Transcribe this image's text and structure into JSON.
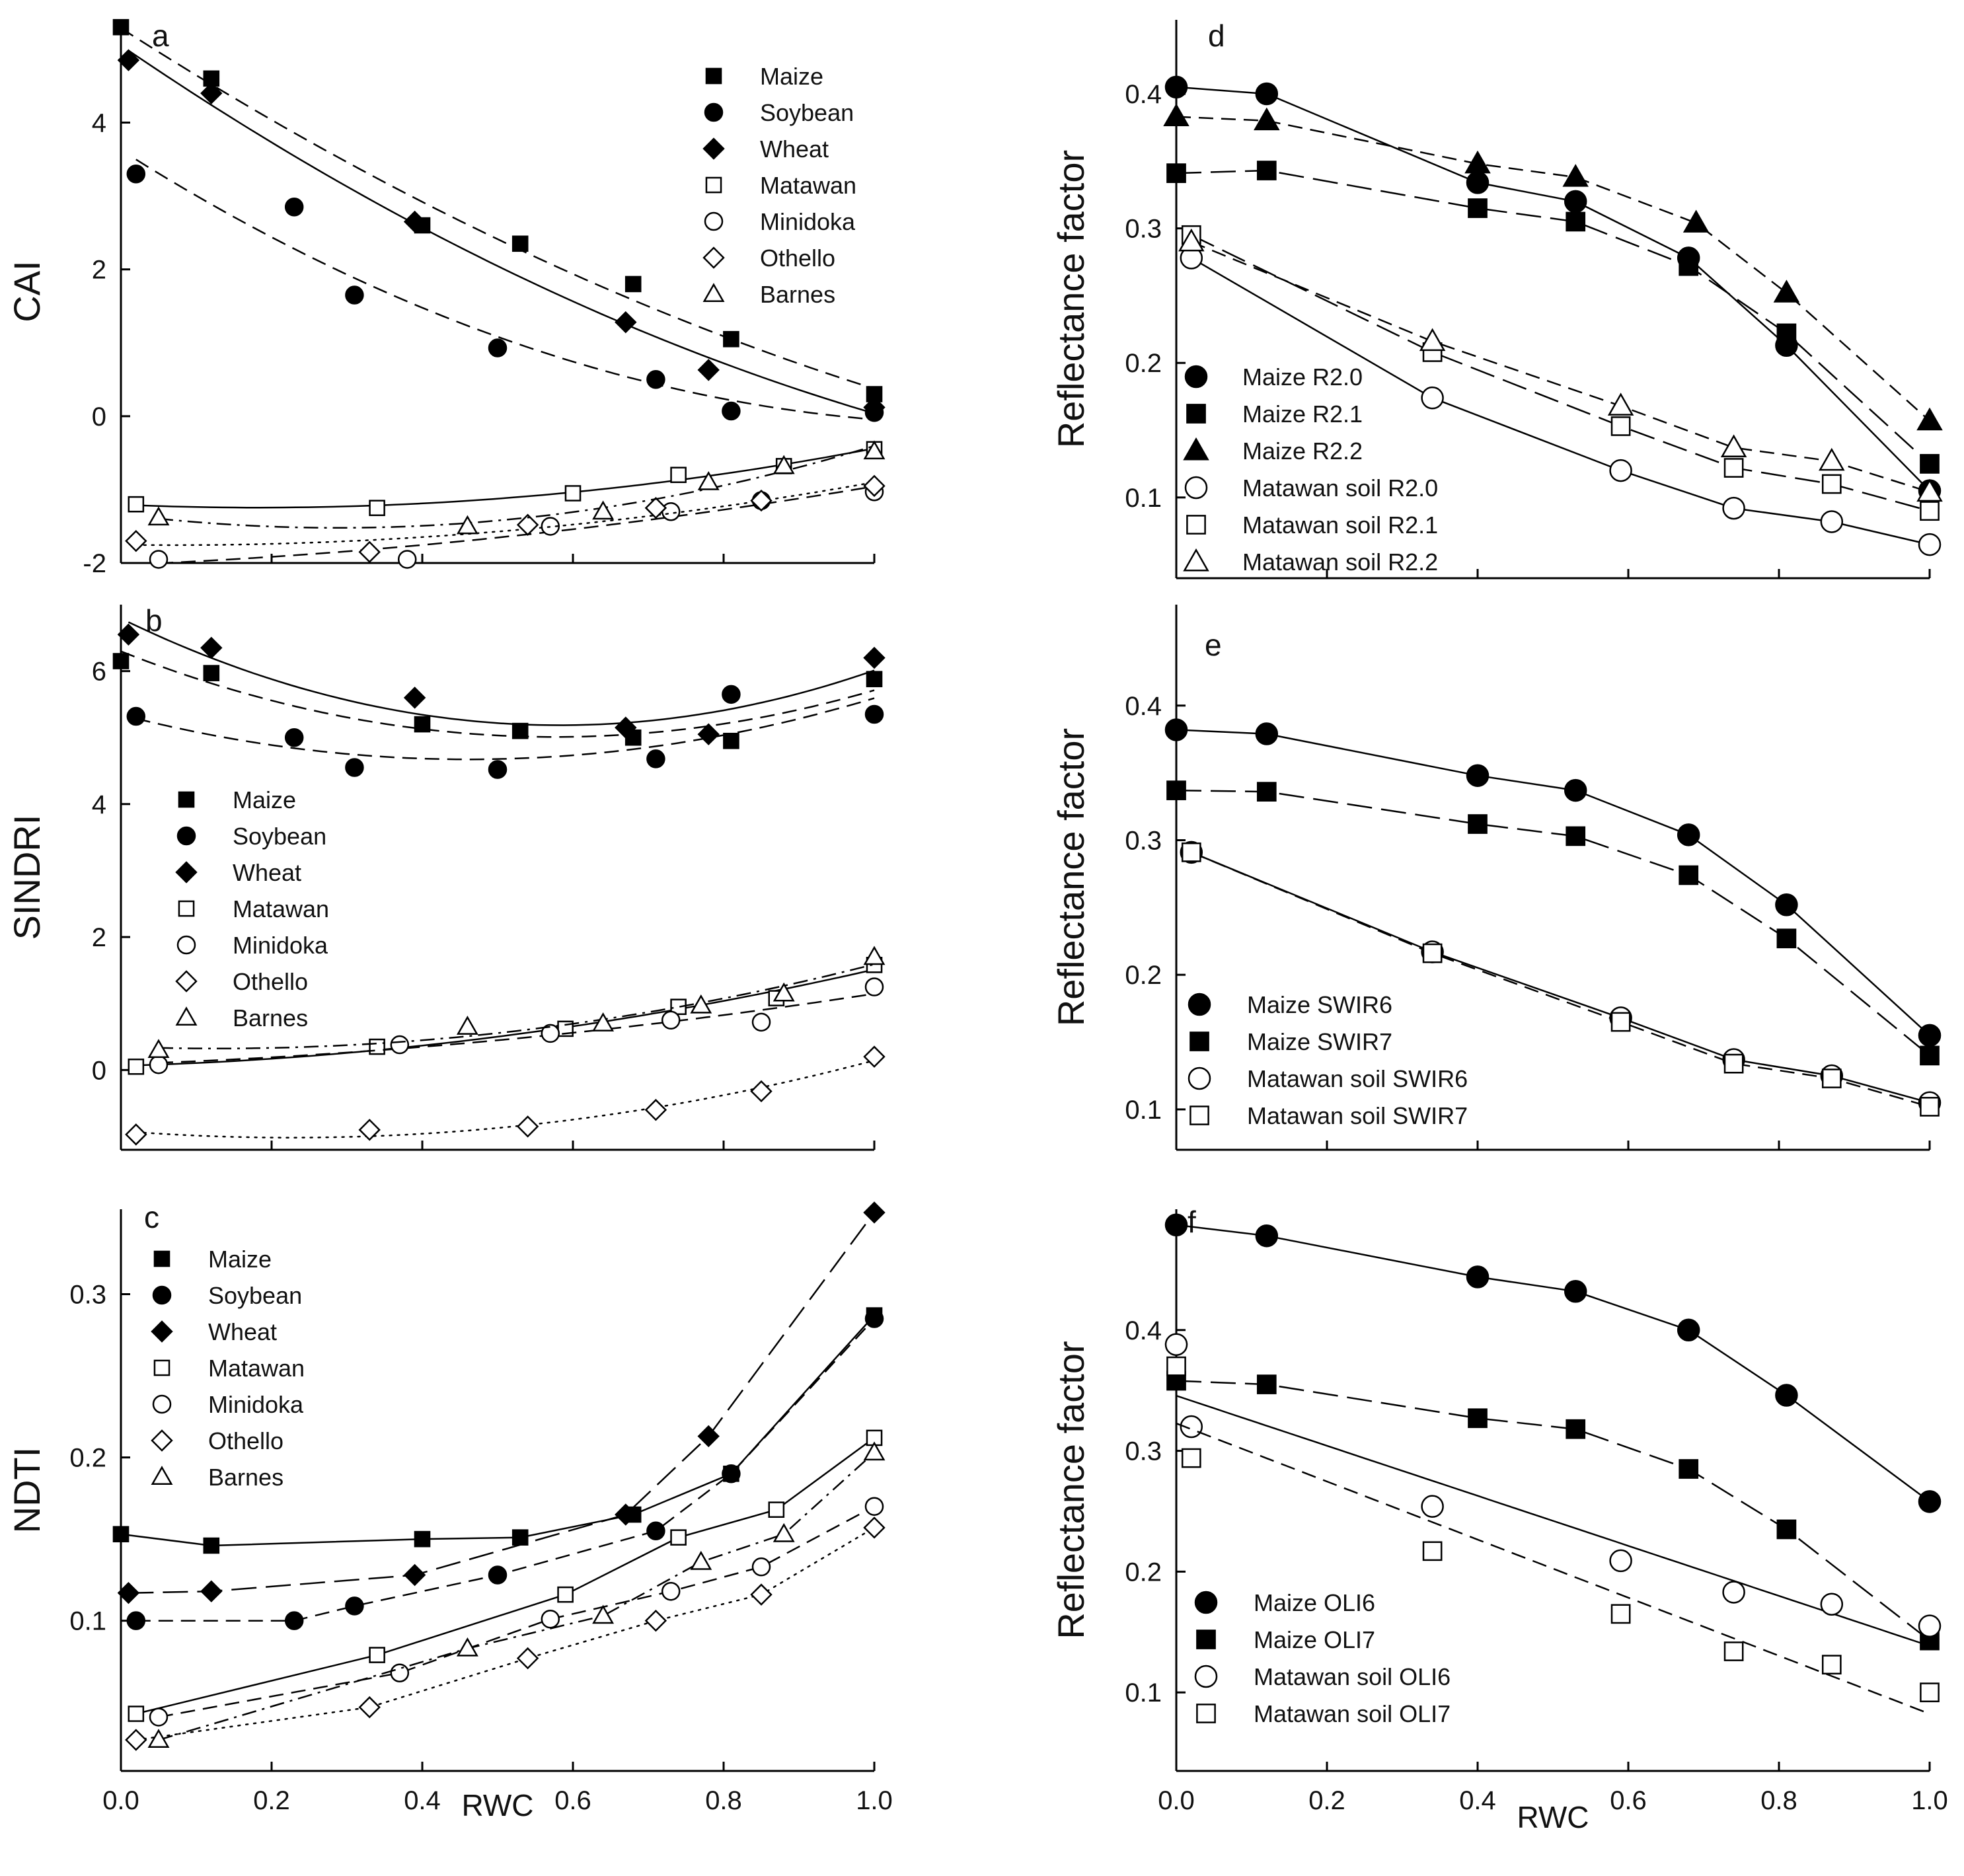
{
  "figure": {
    "x_axis_label": "RWC"
  },
  "chart_data": [
    {
      "id": "a",
      "type": "scatter",
      "panel_label": "a",
      "ylabel": "CAI",
      "xlim": [
        0,
        1
      ],
      "ylim": [
        -2,
        5.4
      ],
      "xticks": [
        0,
        0.2,
        0.4,
        0.6,
        0.8,
        1.0
      ],
      "xtick_labels": [
        "0.0",
        "0.2",
        "0.4",
        "0.6",
        "0.8",
        "1.0"
      ],
      "yticks": [
        -2,
        0,
        2,
        4
      ],
      "ytick_labels": [
        "-2",
        "0",
        "2",
        "4"
      ],
      "show_xtick_labels": false,
      "legend_position": "top-right",
      "series": [
        {
          "name": "Maize",
          "marker": "square",
          "filled": true,
          "line": "dash",
          "fit": "quad",
          "x": [
            0,
            0.12,
            0.4,
            0.53,
            0.68,
            0.81,
            1.0
          ],
          "y": [
            5.3,
            4.6,
            2.6,
            2.35,
            1.8,
            1.05,
            0.3
          ]
        },
        {
          "name": "Soybean",
          "marker": "circle",
          "filled": true,
          "line": "dash",
          "fit": "quad",
          "x": [
            0.02,
            0.23,
            0.31,
            0.5,
            0.71,
            0.81,
            1.0
          ],
          "y": [
            3.3,
            2.85,
            1.65,
            0.93,
            0.5,
            0.07,
            0.05
          ]
        },
        {
          "name": "Wheat",
          "marker": "diamond",
          "filled": true,
          "line": "solid",
          "fit": "quad",
          "x": [
            0.01,
            0.12,
            0.39,
            0.67,
            0.78,
            1.0
          ],
          "y": [
            4.85,
            4.4,
            2.65,
            1.28,
            0.63,
            0.12
          ]
        },
        {
          "name": "Matawan",
          "marker": "square",
          "filled": false,
          "line": "solid",
          "fit": "quad",
          "x": [
            0.02,
            0.34,
            0.6,
            0.74,
            0.88,
            1.0
          ],
          "y": [
            -1.2,
            -1.25,
            -1.05,
            -0.8,
            -0.68,
            -0.45
          ]
        },
        {
          "name": "Minidoka",
          "marker": "circle",
          "filled": false,
          "line": "dash",
          "fit": "quad",
          "x": [
            0.05,
            0.38,
            0.57,
            0.73,
            0.85,
            1.0
          ],
          "y": [
            -1.95,
            -1.95,
            -1.5,
            -1.3,
            -1.15,
            -1.03
          ]
        },
        {
          "name": "Othello",
          "marker": "diamond",
          "filled": false,
          "line": "dot",
          "fit": "quad",
          "x": [
            0.02,
            0.33,
            0.54,
            0.71,
            0.85,
            1.0
          ],
          "y": [
            -1.7,
            -1.85,
            -1.48,
            -1.25,
            -1.15,
            -0.95
          ]
        },
        {
          "name": "Barnes",
          "marker": "triangle",
          "filled": false,
          "line": "dashdot",
          "fit": "quad",
          "x": [
            0.05,
            0.46,
            0.64,
            0.78,
            0.88,
            1.0
          ],
          "y": [
            -1.38,
            -1.5,
            -1.3,
            -0.9,
            -0.68,
            -0.48
          ]
        }
      ]
    },
    {
      "id": "b",
      "type": "scatter",
      "panel_label": "b",
      "ylabel": "SINDRI",
      "xlim": [
        0,
        1
      ],
      "ylim": [
        -1.2,
        7.0
      ],
      "xticks": [
        0,
        0.2,
        0.4,
        0.6,
        0.8,
        1.0
      ],
      "xtick_labels": [
        "0.0",
        "0.2",
        "0.4",
        "0.6",
        "0.8",
        "1.0"
      ],
      "yticks": [
        0,
        2,
        4,
        6
      ],
      "ytick_labels": [
        "0",
        "2",
        "4",
        "6"
      ],
      "show_xtick_labels": false,
      "legend_position": "left-middle",
      "series": [
        {
          "name": "Maize",
          "marker": "square",
          "filled": true,
          "line": "dash",
          "fit": "quad",
          "x": [
            0,
            0.12,
            0.4,
            0.53,
            0.68,
            0.81,
            1.0
          ],
          "y": [
            6.15,
            5.97,
            5.2,
            5.1,
            5.0,
            4.95,
            5.88
          ]
        },
        {
          "name": "Soybean",
          "marker": "circle",
          "filled": true,
          "line": "dash",
          "fit": "quad",
          "x": [
            0.02,
            0.23,
            0.31,
            0.5,
            0.71,
            0.81,
            1.0
          ],
          "y": [
            5.32,
            5.0,
            4.55,
            4.52,
            4.68,
            5.65,
            5.35
          ]
        },
        {
          "name": "Wheat",
          "marker": "diamond",
          "filled": true,
          "line": "solid",
          "fit": "quad",
          "x": [
            0.01,
            0.12,
            0.39,
            0.67,
            0.78,
            1.0
          ],
          "y": [
            6.55,
            6.35,
            5.6,
            5.15,
            5.05,
            6.2
          ]
        },
        {
          "name": "Matawan",
          "marker": "square",
          "filled": false,
          "line": "solid",
          "fit": "quad",
          "x": [
            0.02,
            0.34,
            0.59,
            0.74,
            0.87,
            1.0
          ],
          "y": [
            0.05,
            0.35,
            0.62,
            0.95,
            1.08,
            1.58
          ]
        },
        {
          "name": "Minidoka",
          "marker": "circle",
          "filled": false,
          "line": "dash",
          "fit": "quad",
          "x": [
            0.05,
            0.37,
            0.57,
            0.73,
            0.85,
            1.0
          ],
          "y": [
            0.08,
            0.38,
            0.55,
            0.75,
            0.72,
            1.25
          ]
        },
        {
          "name": "Othello",
          "marker": "diamond",
          "filled": false,
          "line": "dot",
          "fit": "quad",
          "x": [
            0.02,
            0.33,
            0.54,
            0.71,
            0.85,
            1.0
          ],
          "y": [
            -0.97,
            -0.9,
            -0.85,
            -0.6,
            -0.32,
            0.2
          ]
        },
        {
          "name": "Barnes",
          "marker": "triangle",
          "filled": false,
          "line": "dashdot",
          "fit": "quad",
          "x": [
            0.05,
            0.46,
            0.64,
            0.77,
            0.88,
            1.0
          ],
          "y": [
            0.3,
            0.65,
            0.7,
            0.97,
            1.15,
            1.7
          ]
        }
      ]
    },
    {
      "id": "c",
      "type": "scatter",
      "panel_label": "c",
      "ylabel": "NDTI",
      "xlim": [
        0,
        1
      ],
      "ylim": [
        0.008,
        0.352
      ],
      "xticks": [
        0,
        0.2,
        0.4,
        0.6,
        0.8,
        1.0
      ],
      "xtick_labels": [
        "0.0",
        "0.2",
        "0.4",
        "0.6",
        "0.8",
        "1.0"
      ],
      "yticks": [
        0.1,
        0.2,
        0.3
      ],
      "ytick_labels": [
        "0.1",
        "0.2",
        "0.3"
      ],
      "show_xtick_labels": true,
      "legend_position": "top-left",
      "series": [
        {
          "name": "Maize",
          "marker": "square",
          "filled": true,
          "line": "solid",
          "fit": "connect",
          "x": [
            0,
            0.12,
            0.4,
            0.53,
            0.68,
            0.81,
            1.0
          ],
          "y": [
            0.153,
            0.146,
            0.15,
            0.151,
            0.165,
            0.19,
            0.287
          ]
        },
        {
          "name": "Soybean",
          "marker": "circle",
          "filled": true,
          "line": "dash",
          "fit": "connect",
          "x": [
            0.02,
            0.23,
            0.31,
            0.5,
            0.71,
            0.81,
            1.0
          ],
          "y": [
            0.1,
            0.1,
            0.109,
            0.128,
            0.155,
            0.19,
            0.285
          ]
        },
        {
          "name": "Wheat",
          "marker": "diamond",
          "filled": true,
          "line": "longdash",
          "fit": "connect",
          "x": [
            0.01,
            0.12,
            0.39,
            0.67,
            0.78,
            1.0
          ],
          "y": [
            0.117,
            0.118,
            0.128,
            0.165,
            0.213,
            0.35
          ]
        },
        {
          "name": "Matawan",
          "marker": "square",
          "filled": false,
          "line": "solid",
          "fit": "connect",
          "x": [
            0.02,
            0.34,
            0.59,
            0.74,
            0.87,
            1.0
          ],
          "y": [
            0.043,
            0.079,
            0.116,
            0.151,
            0.168,
            0.212
          ]
        },
        {
          "name": "Minidoka",
          "marker": "circle",
          "filled": false,
          "line": "dash",
          "fit": "connect",
          "x": [
            0.05,
            0.37,
            0.57,
            0.73,
            0.85,
            1.0
          ],
          "y": [
            0.041,
            0.068,
            0.101,
            0.118,
            0.133,
            0.17
          ]
        },
        {
          "name": "Othello",
          "marker": "diamond",
          "filled": false,
          "line": "dot",
          "fit": "connect",
          "x": [
            0.02,
            0.33,
            0.54,
            0.71,
            0.85,
            1.0
          ],
          "y": [
            0.027,
            0.047,
            0.077,
            0.1,
            0.116,
            0.157
          ]
        },
        {
          "name": "Barnes",
          "marker": "triangle",
          "filled": false,
          "line": "dashdot",
          "fit": "connect",
          "x": [
            0.05,
            0.46,
            0.64,
            0.77,
            0.88,
            1.0
          ],
          "y": [
            0.027,
            0.083,
            0.103,
            0.136,
            0.153,
            0.203
          ]
        }
      ]
    },
    {
      "id": "d",
      "type": "line",
      "panel_label": "d",
      "ylabel": "Reflectance factor",
      "xlim": [
        0,
        1
      ],
      "ylim": [
        0.04,
        0.455
      ],
      "xticks": [
        0,
        0.2,
        0.4,
        0.6,
        0.8,
        1.0
      ],
      "xtick_labels": [
        "0.0",
        "0.2",
        "0.4",
        "0.6",
        "0.8",
        "1.0"
      ],
      "yticks": [
        0.1,
        0.2,
        0.3,
        0.4
      ],
      "ytick_labels": [
        "0.1",
        "0.2",
        "0.3",
        "0.4"
      ],
      "show_xtick_labels": false,
      "legend_position": "bottom-left",
      "series": [
        {
          "name": "Maize R2.0",
          "marker": "circle",
          "filled": true,
          "line": "solid",
          "x": [
            0,
            0.12,
            0.4,
            0.53,
            0.68,
            0.81,
            1.0
          ],
          "y": [
            0.405,
            0.4,
            0.334,
            0.32,
            0.278,
            0.213,
            0.105
          ]
        },
        {
          "name": "Maize R2.1",
          "marker": "square",
          "filled": true,
          "line": "longdash",
          "x": [
            0,
            0.12,
            0.4,
            0.53,
            0.68,
            0.81,
            1.0
          ],
          "y": [
            0.341,
            0.343,
            0.315,
            0.305,
            0.272,
            0.222,
            0.125
          ]
        },
        {
          "name": "Maize R2.2",
          "marker": "triangle",
          "filled": true,
          "line": "dash",
          "x": [
            0,
            0.12,
            0.4,
            0.53,
            0.69,
            0.81,
            1.0
          ],
          "y": [
            0.383,
            0.38,
            0.348,
            0.338,
            0.304,
            0.252,
            0.157
          ]
        },
        {
          "name": "Matawan soil R2.0",
          "marker": "circle",
          "filled": false,
          "line": "solid",
          "x": [
            0.02,
            0.34,
            0.59,
            0.74,
            0.87,
            1.0
          ],
          "y": [
            0.278,
            0.174,
            0.12,
            0.092,
            0.082,
            0.065
          ]
        },
        {
          "name": "Matawan soil R2.1",
          "marker": "square",
          "filled": false,
          "line": "longdash",
          "x": [
            0.02,
            0.34,
            0.59,
            0.74,
            0.87,
            1.0
          ],
          "y": [
            0.295,
            0.208,
            0.153,
            0.122,
            0.11,
            0.09
          ]
        },
        {
          "name": "Matawan soil R2.2",
          "marker": "triangle",
          "filled": false,
          "line": "dash",
          "x": [
            0.02,
            0.34,
            0.59,
            0.74,
            0.87,
            1.0
          ],
          "y": [
            0.29,
            0.216,
            0.168,
            0.137,
            0.127,
            0.104
          ]
        }
      ]
    },
    {
      "id": "e",
      "type": "line",
      "panel_label": "e",
      "ylabel": "Reflectance factor",
      "xlim": [
        0,
        1
      ],
      "ylim": [
        0.07,
        0.475
      ],
      "xticks": [
        0,
        0.2,
        0.4,
        0.6,
        0.8,
        1.0
      ],
      "xtick_labels": [
        "0.0",
        "0.2",
        "0.4",
        "0.6",
        "0.8",
        "1.0"
      ],
      "yticks": [
        0.1,
        0.2,
        0.3,
        0.4
      ],
      "ytick_labels": [
        "0.1",
        "0.2",
        "0.3",
        "0.4"
      ],
      "show_xtick_labels": false,
      "legend_position": "bottom-left",
      "series": [
        {
          "name": "Maize SWIR6",
          "marker": "circle",
          "filled": true,
          "line": "solid",
          "x": [
            0,
            0.12,
            0.4,
            0.53,
            0.68,
            0.81,
            1.0
          ],
          "y": [
            0.382,
            0.379,
            0.348,
            0.337,
            0.304,
            0.252,
            0.155
          ]
        },
        {
          "name": "Maize SWIR7",
          "marker": "square",
          "filled": true,
          "line": "longdash",
          "x": [
            0,
            0.12,
            0.4,
            0.53,
            0.68,
            0.81,
            1.0
          ],
          "y": [
            0.337,
            0.336,
            0.312,
            0.303,
            0.274,
            0.227,
            0.14
          ]
        },
        {
          "name": "Matawan soil SWIR6",
          "marker": "circle",
          "filled": false,
          "line": "solid",
          "x": [
            0.02,
            0.34,
            0.59,
            0.74,
            0.87,
            1.0
          ],
          "y": [
            0.291,
            0.217,
            0.168,
            0.137,
            0.125,
            0.105
          ]
        },
        {
          "name": "Matawan soil SWIR7",
          "marker": "square",
          "filled": false,
          "line": "dash",
          "x": [
            0.02,
            0.34,
            0.59,
            0.74,
            0.87,
            1.0
          ],
          "y": [
            0.291,
            0.216,
            0.165,
            0.134,
            0.123,
            0.102
          ]
        }
      ]
    },
    {
      "id": "f",
      "type": "line",
      "panel_label": "f",
      "ylabel": "Reflectance factor",
      "xlim": [
        0,
        1
      ],
      "ylim": [
        0.035,
        0.5
      ],
      "xticks": [
        0,
        0.2,
        0.4,
        0.6,
        0.8,
        1.0
      ],
      "xtick_labels": [
        "0.0",
        "0.2",
        "0.4",
        "0.6",
        "0.8",
        "1.0"
      ],
      "yticks": [
        0.1,
        0.2,
        0.3,
        0.4
      ],
      "ytick_labels": [
        "0.1",
        "0.2",
        "0.3",
        "0.4"
      ],
      "show_xtick_labels": true,
      "legend_position": "bottom-left",
      "series": [
        {
          "name": "Maize OLI6",
          "marker": "circle",
          "filled": true,
          "line": "solid",
          "x": [
            0,
            0.12,
            0.4,
            0.53,
            0.68,
            0.81,
            1.0
          ],
          "y": [
            0.487,
            0.478,
            0.444,
            0.432,
            0.4,
            0.346,
            0.258
          ]
        },
        {
          "name": "Maize OLI7",
          "marker": "square",
          "filled": true,
          "line": "longdash",
          "x": [
            0,
            0.12,
            0.4,
            0.53,
            0.68,
            0.81,
            1.0
          ],
          "y": [
            0.358,
            0.355,
            0.327,
            0.318,
            0.285,
            0.235,
            0.143
          ]
        },
        {
          "name": "Matawan soil OLI6",
          "marker": "circle",
          "filled": false,
          "line": "solid",
          "fit": "linear",
          "x": [
            0,
            0.02,
            0.34,
            0.59,
            0.74,
            0.87,
            1.0
          ],
          "y": [
            0.388,
            0.32,
            0.254,
            0.209,
            0.183,
            0.173,
            0.155
          ]
        },
        {
          "name": "Matawan soil OLI7",
          "marker": "square",
          "filled": false,
          "line": "dash",
          "fit": "linear",
          "x": [
            0,
            0.02,
            0.34,
            0.59,
            0.74,
            0.87,
            1.0
          ],
          "y": [
            0.37,
            0.294,
            0.217,
            0.165,
            0.134,
            0.123,
            0.1
          ]
        }
      ]
    }
  ]
}
